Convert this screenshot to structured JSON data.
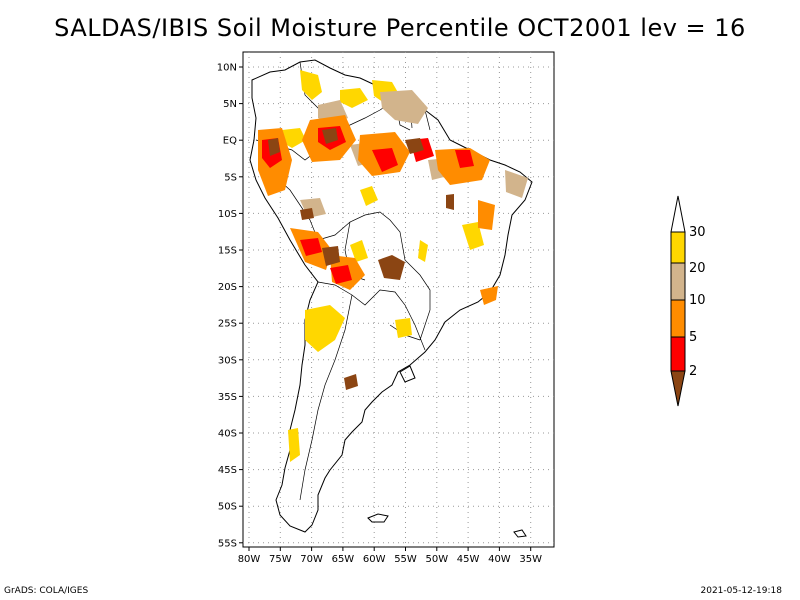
{
  "title": "SALDAS/IBIS Soil Moisture Percentile OCT2001 lev = 16",
  "lat_ticks": [
    "10N",
    "5N",
    "EQ",
    "5S",
    "10S",
    "15S",
    "20S",
    "25S",
    "30S",
    "35S",
    "40S",
    "45S",
    "50S",
    "55S"
  ],
  "lon_ticks": [
    "80W",
    "75W",
    "70W",
    "65W",
    "60W",
    "55W",
    "50W",
    "45W",
    "40W",
    "35W"
  ],
  "legend": {
    "labels": [
      "30",
      "20",
      "10",
      "5",
      "2"
    ],
    "colors": {
      "above30": "#ffffff",
      "c20_30": "#ffd700",
      "c10_20": "#d2b48c",
      "c5_10": "#ff8c00",
      "c2_5": "#ff0000",
      "below2": "#8b4513"
    }
  },
  "footer": {
    "left": "GrADS: COLA/IGES",
    "right": "2021-05-12-19:18"
  }
}
